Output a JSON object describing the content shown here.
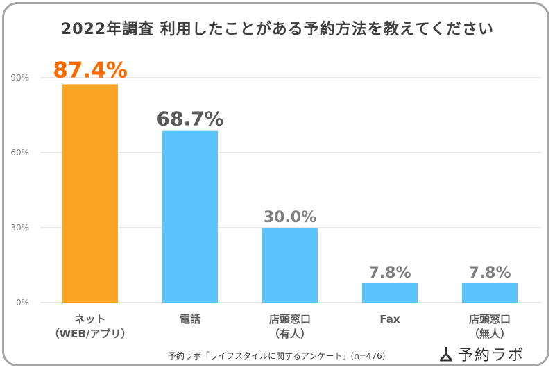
{
  "chart_data": {
    "type": "bar",
    "title": "2022年調査  利用したことがある予約方法を教えてください",
    "categories": [
      [
        "ネット",
        "（WEB/アプリ）"
      ],
      [
        "電話"
      ],
      [
        "店頭窓口",
        "（有人）"
      ],
      [
        "Fax"
      ],
      [
        "店頭窓口",
        "（無人）"
      ]
    ],
    "values": [
      87.4,
      68.7,
      30.0,
      7.8,
      7.8
    ],
    "value_labels": [
      "87.4%",
      "68.7%",
      "30.0%",
      "7.8%",
      "7.8%"
    ],
    "bar_colors": [
      "#fca524",
      "#5bc3fb",
      "#5bc3fb",
      "#5bc3fb",
      "#5bc3fb"
    ],
    "label_colors": [
      "#ff6a00",
      "#595959",
      "#7f7f7f",
      "#7f7f7f",
      "#7f7f7f"
    ],
    "ylim": [
      0,
      90
    ],
    "yticks": [
      0,
      30,
      60,
      90
    ],
    "ytick_labels": [
      "0%",
      "30%",
      "60%",
      "90%"
    ],
    "grid": true,
    "xlabel": "",
    "ylabel": ""
  },
  "footer": {
    "source": "予約ラボ「ライフスタイルに関するアンケート」(n=476)",
    "logo_text": "予約ラボ"
  }
}
